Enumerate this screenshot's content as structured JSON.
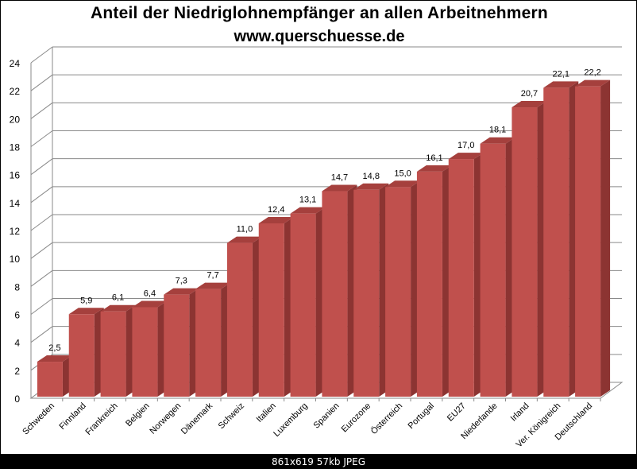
{
  "header": {
    "title": "Anteil der Niedriglohnempfänger  an allen Arbeitnehmern",
    "subtitle": "www.querschuesse.de"
  },
  "footer": {
    "caption": "861x619  57kb  JPEG"
  },
  "colors": {
    "bar_front": "#c0504d",
    "bar_side": "#8c3432",
    "bar_top": "#a5403d",
    "grid": "#8a8a8a"
  },
  "chart_data": {
    "type": "bar",
    "style": "3d-column",
    "title": "Anteil der Niedriglohnempfänger an allen Arbeitnehmern",
    "subtitle": "www.querschuesse.de",
    "xlabel": "",
    "ylabel": "",
    "ylim": [
      0,
      24
    ],
    "yticks": [
      0,
      2,
      4,
      6,
      8,
      10,
      12,
      14,
      16,
      18,
      20,
      22,
      24
    ],
    "grid": true,
    "legend": false,
    "categories": [
      "Schweden",
      "Finnland",
      "Frankreich",
      "Belgien",
      "Norwegen",
      "Dänemark",
      "Schweiz",
      "Italien",
      "Luxemburg",
      "Spanien",
      "Eurozone",
      "Österreich",
      "Portugal",
      "EU27",
      "Niederlande",
      "Irland",
      "Ver. Königreich",
      "Deutschland"
    ],
    "values": [
      2.5,
      5.9,
      6.1,
      6.4,
      7.3,
      7.7,
      11.0,
      12.4,
      13.1,
      14.7,
      14.8,
      15.0,
      16.1,
      17.0,
      18.1,
      20.7,
      22.1,
      22.2
    ],
    "data_labels": [
      "2,5",
      "5,9",
      "6,1",
      "6,4",
      "7,3",
      "7,7",
      "11,0",
      "12,4",
      "13,1",
      "14,7",
      "14,8",
      "15,0",
      "16,1",
      "17,0",
      "18,1",
      "20,7",
      "22,1",
      "22,2"
    ]
  }
}
